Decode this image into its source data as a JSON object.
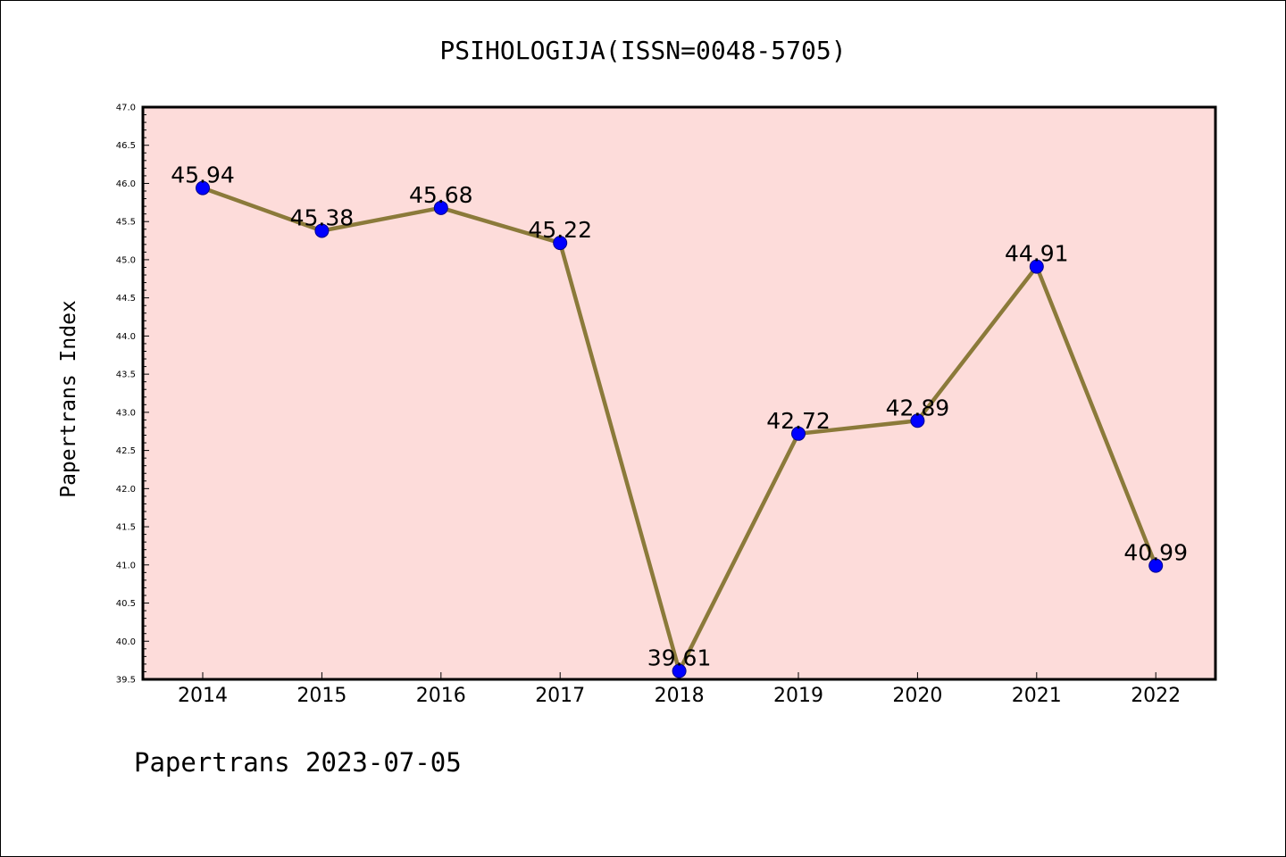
{
  "chart_data": {
    "type": "line",
    "title": "PSIHOLOGIJA(ISSN=0048-5705)",
    "ylabel": "Papertrans Index",
    "xlabel": "",
    "x": [
      "2014",
      "2015",
      "2016",
      "2017",
      "2018",
      "2019",
      "2020",
      "2021",
      "2022"
    ],
    "series": [
      {
        "values": [
          45.94,
          45.38,
          45.68,
          45.22,
          39.61,
          42.72,
          42.89,
          44.91,
          40.99
        ],
        "labels": [
          "45.94",
          "45.38",
          "45.68",
          "45.22",
          "39.61",
          "42.72",
          "42.89",
          "44.91",
          "40.99"
        ]
      }
    ],
    "ylim": [
      39.5,
      47.0
    ],
    "yticks": [
      "39.5",
      "40.0",
      "40.5",
      "41.0",
      "41.5",
      "42.0",
      "42.5",
      "43.0",
      "43.5",
      "44.0",
      "44.5",
      "45.0",
      "45.5",
      "46.0",
      "46.5",
      "47.0"
    ],
    "grid": false,
    "legend": "none",
    "colors": {
      "plot_background": "#fddcda",
      "line": "#8b7a3a",
      "marker": "#0000ff",
      "marker_edge": "#00008b"
    }
  },
  "footer": "Papertrans 2023-07-05"
}
